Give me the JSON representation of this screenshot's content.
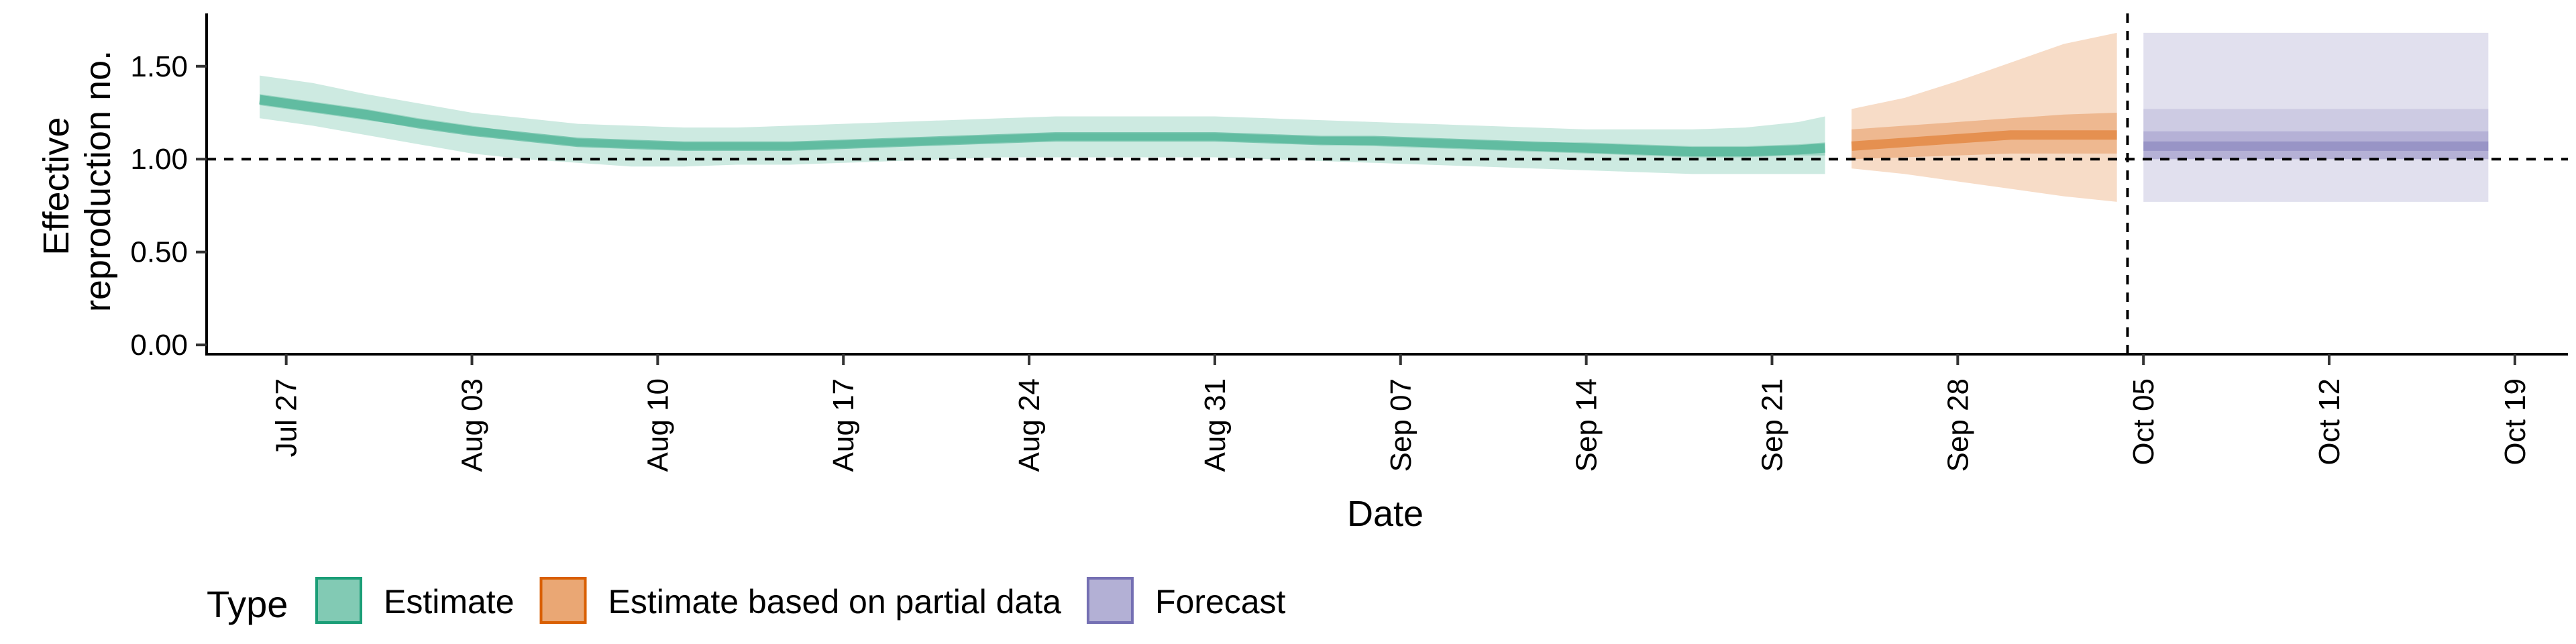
{
  "chart_data": {
    "type": "area",
    "xlabel": "Date",
    "ylabel_lines": [
      "Effective",
      "reproduction no."
    ],
    "ylim": [
      -0.05,
      1.77
    ],
    "y_ticks": [
      0.0,
      0.5,
      1.0,
      1.5
    ],
    "y_tick_labels": [
      "0.00",
      "0.50",
      "1.00",
      "1.50"
    ],
    "xlim": [
      "2021-07-24",
      "2021-10-21"
    ],
    "x_ticks": [
      "2021-07-27",
      "2021-08-03",
      "2021-08-10",
      "2021-08-17",
      "2021-08-24",
      "2021-08-31",
      "2021-09-07",
      "2021-09-14",
      "2021-09-21",
      "2021-09-28",
      "2021-10-05",
      "2021-10-12",
      "2021-10-19"
    ],
    "x_tick_labels": [
      "Jul 27",
      "Aug 03",
      "Aug 10",
      "Aug 17",
      "Aug 24",
      "Aug 31",
      "Sep 07",
      "Sep 14",
      "Sep 21",
      "Sep 28",
      "Oct 05",
      "Oct 12",
      "Oct 19"
    ],
    "reference_line_y": 1.0,
    "reference_line_x": "2021-10-04",
    "grid": false,
    "colors": {
      "Estimate": "#1b9e77",
      "Estimate based on partial data": "#d95f02",
      "Forecast": "#7570b3"
    },
    "legend": {
      "title": "Type",
      "position": "bottom-left",
      "items": [
        "Estimate",
        "Estimate based on partial data",
        "Forecast"
      ]
    },
    "series": [
      {
        "name": "Estimate",
        "x": [
          "2021-07-26",
          "2021-07-28",
          "2021-07-30",
          "2021-08-01",
          "2021-08-03",
          "2021-08-05",
          "2021-08-07",
          "2021-08-09",
          "2021-08-11",
          "2021-08-13",
          "2021-08-15",
          "2021-08-17",
          "2021-08-19",
          "2021-08-21",
          "2021-08-23",
          "2021-08-25",
          "2021-08-27",
          "2021-08-29",
          "2021-08-31",
          "2021-09-02",
          "2021-09-04",
          "2021-09-06",
          "2021-09-08",
          "2021-09-10",
          "2021-09-12",
          "2021-09-14",
          "2021-09-16",
          "2021-09-18",
          "2021-09-20",
          "2021-09-22",
          "2021-09-23"
        ],
        "median": [
          1.32,
          1.28,
          1.24,
          1.19,
          1.15,
          1.12,
          1.09,
          1.08,
          1.07,
          1.07,
          1.07,
          1.08,
          1.09,
          1.1,
          1.11,
          1.12,
          1.12,
          1.12,
          1.12,
          1.11,
          1.1,
          1.1,
          1.09,
          1.08,
          1.07,
          1.06,
          1.05,
          1.04,
          1.04,
          1.05,
          1.06
        ],
        "lower_50": [
          1.29,
          1.25,
          1.21,
          1.17,
          1.13,
          1.1,
          1.07,
          1.06,
          1.05,
          1.05,
          1.05,
          1.06,
          1.07,
          1.08,
          1.09,
          1.1,
          1.1,
          1.1,
          1.1,
          1.09,
          1.08,
          1.07,
          1.06,
          1.05,
          1.04,
          1.03,
          1.02,
          1.01,
          1.01,
          1.02,
          1.02
        ],
        "upper_50": [
          1.35,
          1.31,
          1.27,
          1.22,
          1.18,
          1.14,
          1.11,
          1.1,
          1.09,
          1.09,
          1.09,
          1.1,
          1.11,
          1.12,
          1.13,
          1.14,
          1.14,
          1.14,
          1.14,
          1.13,
          1.12,
          1.12,
          1.11,
          1.1,
          1.09,
          1.09,
          1.08,
          1.07,
          1.07,
          1.08,
          1.09
        ],
        "lower_90": [
          1.22,
          1.18,
          1.13,
          1.08,
          1.03,
          1.0,
          0.98,
          0.96,
          0.96,
          0.97,
          0.97,
          0.98,
          0.99,
          1.0,
          1.01,
          1.01,
          1.01,
          1.01,
          1.01,
          1.0,
          0.99,
          0.98,
          0.97,
          0.96,
          0.95,
          0.94,
          0.93,
          0.92,
          0.92,
          0.92,
          0.92
        ],
        "upper_90": [
          1.45,
          1.41,
          1.35,
          1.3,
          1.25,
          1.22,
          1.19,
          1.18,
          1.17,
          1.17,
          1.18,
          1.19,
          1.2,
          1.21,
          1.22,
          1.23,
          1.23,
          1.23,
          1.23,
          1.22,
          1.21,
          1.2,
          1.19,
          1.18,
          1.17,
          1.16,
          1.16,
          1.16,
          1.17,
          1.2,
          1.23
        ]
      },
      {
        "name": "Estimate based on partial data",
        "x": [
          "2021-09-24",
          "2021-09-26",
          "2021-09-28",
          "2021-09-30",
          "2021-10-02",
          "2021-10-04"
        ],
        "median": [
          1.07,
          1.09,
          1.11,
          1.13,
          1.13,
          1.13
        ],
        "lower_50": [
          1.0,
          1.01,
          1.02,
          1.03,
          1.03,
          1.03
        ],
        "upper_50": [
          1.16,
          1.18,
          1.2,
          1.22,
          1.24,
          1.25
        ],
        "lower_90": [
          0.95,
          0.92,
          0.88,
          0.84,
          0.8,
          0.77
        ],
        "upper_90": [
          1.27,
          1.33,
          1.42,
          1.52,
          1.62,
          1.68
        ]
      },
      {
        "name": "Forecast",
        "x": [
          "2021-10-05",
          "2021-10-18"
        ],
        "median": [
          1.07,
          1.07
        ],
        "lower_50": [
          1.0,
          1.0
        ],
        "upper_50": [
          1.15,
          1.15
        ],
        "lower_90": [
          0.77,
          0.77
        ],
        "upper_90": [
          1.68,
          1.68
        ],
        "lower_outer": [
          1.0,
          1.0
        ],
        "upper_outer": [
          1.27,
          1.27
        ]
      }
    ]
  }
}
